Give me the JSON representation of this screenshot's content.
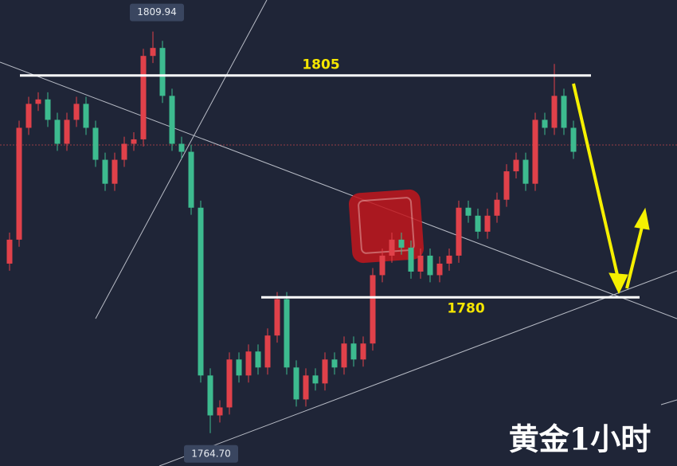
{
  "chart_data": {
    "type": "candlestick",
    "title": "黄金1小时",
    "up_color": "#e0414a",
    "down_color": "#3dbb8f",
    "ylim": [
      1761,
      1813.5
    ],
    "open": [
      1783.8,
      1786.5,
      1799.1,
      1801.8,
      1802.3,
      1800.0,
      1797.3,
      1800.0,
      1801.8,
      1799.1,
      1795.5,
      1792.8,
      1795.5,
      1797.3,
      1797.8,
      1807.2,
      1808.1,
      1802.7,
      1797.3,
      1796.4,
      1790.1,
      1771.2,
      1766.7,
      1767.6,
      1773.0,
      1771.2,
      1773.9,
      1772.1,
      1775.7,
      1779.8,
      1772.1,
      1768.5,
      1771.2,
      1770.3,
      1773.0,
      1772.1,
      1774.8,
      1773.0,
      1774.8,
      1782.5,
      1784.7,
      1786.5,
      1785.6,
      1782.9,
      1784.7,
      1782.5,
      1783.8,
      1784.7,
      1790.1,
      1789.2,
      1787.4,
      1789.2,
      1791.0,
      1794.2,
      1795.5,
      1792.8,
      1800.0,
      1799.1,
      1802.7,
      1799.1
    ],
    "high": [
      1787.3,
      1799.9,
      1802.6,
      1803.1,
      1803.1,
      1800.8,
      1800.8,
      1802.6,
      1802.6,
      1799.9,
      1796.3,
      1796.3,
      1798.1,
      1798.6,
      1808.0,
      1809.94,
      1808.9,
      1803.5,
      1798.1,
      1797.2,
      1790.9,
      1772.0,
      1768.4,
      1773.8,
      1773.8,
      1774.7,
      1774.7,
      1776.5,
      1780.6,
      1780.6,
      1772.9,
      1772.0,
      1772.0,
      1773.8,
      1773.8,
      1775.6,
      1775.6,
      1775.6,
      1783.3,
      1785.5,
      1787.3,
      1787.3,
      1786.4,
      1785.5,
      1785.5,
      1784.6,
      1785.5,
      1790.9,
      1790.9,
      1790.0,
      1790.0,
      1791.8,
      1795.0,
      1796.3,
      1796.3,
      1800.8,
      1800.8,
      1806.3,
      1803.5,
      1799.9
    ],
    "low": [
      1783.0,
      1785.7,
      1798.3,
      1801.0,
      1799.2,
      1796.5,
      1796.5,
      1799.2,
      1798.3,
      1794.7,
      1792.0,
      1792.0,
      1794.7,
      1796.5,
      1797.0,
      1806.4,
      1801.9,
      1796.5,
      1795.6,
      1789.3,
      1770.4,
      1764.7,
      1765.9,
      1766.8,
      1770.4,
      1770.4,
      1771.3,
      1771.3,
      1774.9,
      1771.3,
      1767.7,
      1767.7,
      1769.5,
      1769.5,
      1771.3,
      1771.3,
      1772.2,
      1772.2,
      1774.0,
      1781.7,
      1783.9,
      1784.8,
      1782.1,
      1782.1,
      1781.7,
      1781.7,
      1783.0,
      1783.9,
      1788.4,
      1786.6,
      1786.6,
      1788.4,
      1790.2,
      1793.4,
      1792.0,
      1792.0,
      1798.3,
      1798.3,
      1798.3,
      1795.6
    ],
    "close": [
      1786.5,
      1799.1,
      1801.8,
      1802.3,
      1800.0,
      1797.3,
      1800.0,
      1801.8,
      1799.1,
      1795.5,
      1792.8,
      1795.5,
      1797.3,
      1797.8,
      1807.2,
      1808.1,
      1802.7,
      1797.3,
      1796.4,
      1790.1,
      1771.2,
      1766.7,
      1767.6,
      1773.0,
      1771.2,
      1773.9,
      1772.1,
      1775.7,
      1779.8,
      1772.1,
      1768.5,
      1771.2,
      1770.3,
      1773.0,
      1772.1,
      1774.8,
      1773.0,
      1774.8,
      1782.5,
      1784.7,
      1786.5,
      1785.6,
      1782.9,
      1784.7,
      1782.5,
      1783.8,
      1784.7,
      1790.1,
      1789.2,
      1787.4,
      1789.2,
      1791.0,
      1794.2,
      1795.5,
      1792.8,
      1800.0,
      1799.1,
      1802.7,
      1799.1,
      1796.4
    ],
    "levels": [
      1805,
      1780
    ],
    "extremes": [
      {
        "value": 1809.94,
        "label": "1809.94"
      },
      {
        "value": 1764.7,
        "label": "1764.70"
      }
    ]
  }
}
